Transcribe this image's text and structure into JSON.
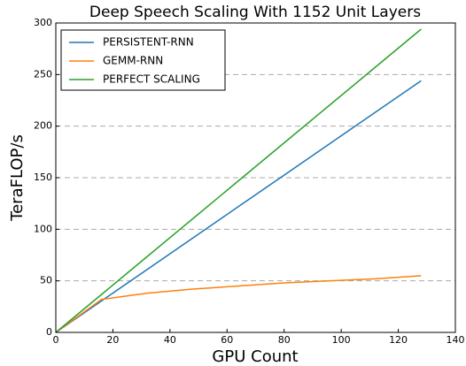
{
  "chart_data": {
    "type": "line",
    "title": "Deep Speech Scaling With 1152 Unit Layers",
    "x_label": "GPU Count",
    "y_label": "TeraFLOP/s",
    "x": [
      0,
      16,
      32,
      48,
      64,
      80,
      96,
      112,
      128
    ],
    "series": [
      {
        "name": "PERSISTENT-RNN",
        "color": "#1f77b4",
        "values": [
          0,
          30.5,
          61,
          91.5,
          122,
          152.5,
          183,
          213.5,
          244
        ]
      },
      {
        "name": "GEMM-RNN",
        "color": "#ff7f0e",
        "values": [
          0,
          32,
          38,
          42,
          45,
          48,
          50,
          52,
          55
        ]
      },
      {
        "name": "PERFECT SCALING",
        "color": "#2ca02c",
        "values": [
          0,
          36.75,
          73.5,
          110.25,
          147,
          183.75,
          220.5,
          257.25,
          294
        ]
      }
    ],
    "xlim": [
      0,
      140
    ],
    "xticks": [
      0,
      20,
      40,
      60,
      80,
      100,
      120,
      140
    ],
    "ylim": [
      0,
      300
    ],
    "yticks": [
      0,
      50,
      100,
      150,
      200,
      250,
      300
    ],
    "grid": true,
    "legend": "upper left"
  }
}
